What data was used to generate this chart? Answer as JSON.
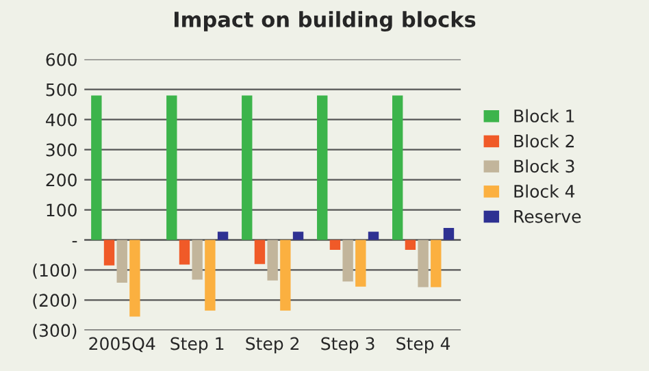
{
  "chart_data": {
    "type": "bar",
    "title": "Impact on building blocks",
    "categories": [
      "2005Q4",
      "Step 1",
      "Step 2",
      "Step 3",
      "Step 4"
    ],
    "series": [
      {
        "name": "Block 1",
        "color": "#3cb44b",
        "values": [
          480,
          480,
          480,
          480,
          480
        ]
      },
      {
        "name": "Block 2",
        "color": "#f05a28",
        "values": [
          -85,
          -82,
          -80,
          -33,
          -33
        ]
      },
      {
        "name": "Block 3",
        "color": "#c2b59b",
        "values": [
          -142,
          -132,
          -135,
          -138,
          -157
        ]
      },
      {
        "name": "Block 4",
        "color": "#fbb040",
        "values": [
          -255,
          -235,
          -235,
          -155,
          -157
        ]
      },
      {
        "name": "Reserve",
        "color": "#2e3192",
        "values": [
          null,
          27,
          27,
          27,
          40
        ]
      }
    ],
    "ylim": [
      -300,
      600
    ],
    "yticks": [
      {
        "value": -300,
        "label": "(300)"
      },
      {
        "value": -200,
        "label": "(200)"
      },
      {
        "value": -100,
        "label": "(100)"
      },
      {
        "value": 0,
        "label": "-"
      },
      100,
      200,
      300,
      400,
      500,
      600
    ],
    "grid": "y",
    "legend": "right"
  }
}
